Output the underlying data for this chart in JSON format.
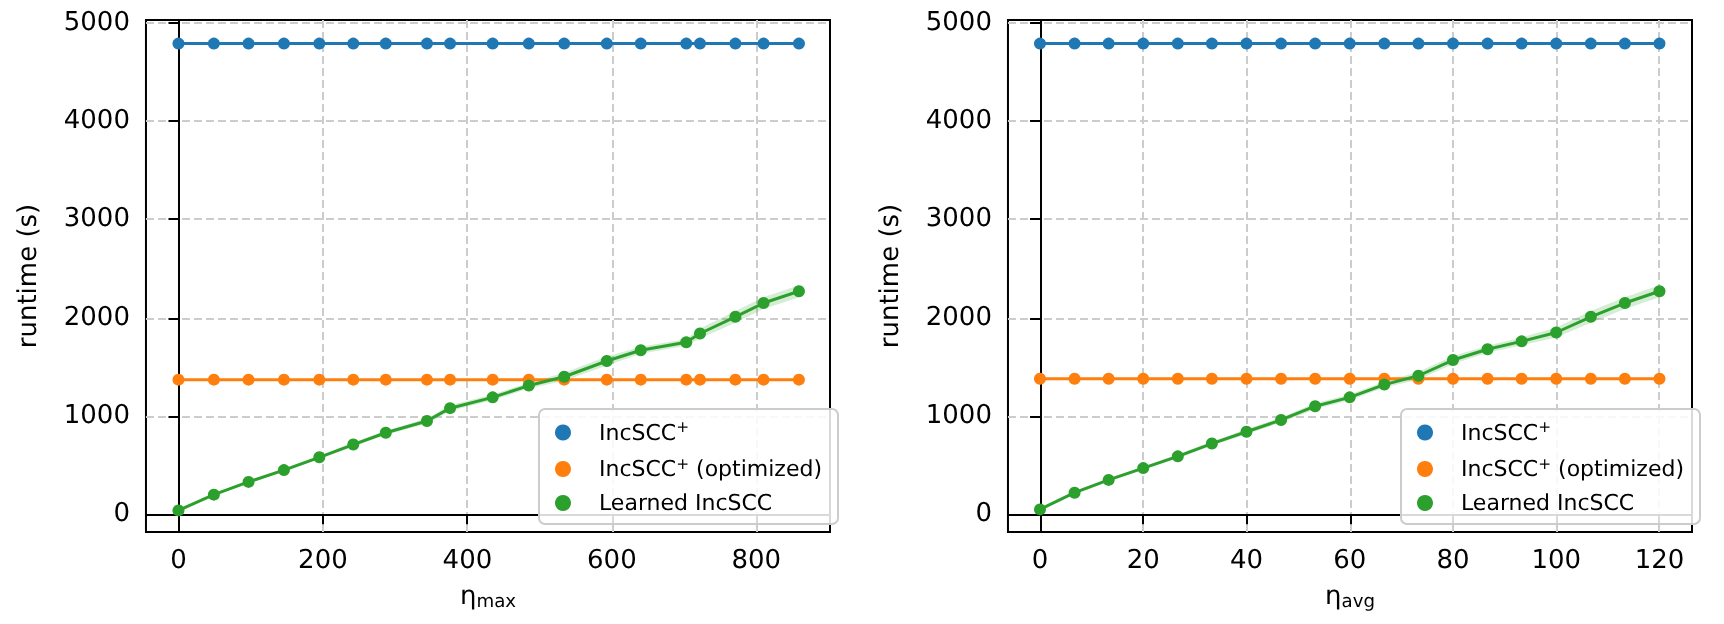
{
  "chart_data": [
    {
      "type": "line",
      "xlabel": "η$_{max}$",
      "ylabel": "runtime (s)",
      "xlim": [
        -45,
        902
      ],
      "xticks": [
        0,
        200,
        400,
        600,
        800
      ],
      "ylim": [
        -180,
        5030
      ],
      "yticks": [
        0,
        1000,
        2000,
        3000,
        4000,
        5000
      ],
      "grid": true,
      "legend": "bottom right",
      "marker": "circle",
      "line_style": "solid",
      "x": [
        0,
        49,
        97,
        146,
        195,
        242,
        287,
        344,
        376,
        435,
        485,
        534,
        593,
        640,
        703,
        722,
        771,
        810,
        859
      ],
      "series": [
        {
          "name": "IncSCC$^{+}$",
          "color": "#1f77b4",
          "values": [
            4790,
            4790,
            4790,
            4790,
            4790,
            4790,
            4790,
            4790,
            4790,
            4790,
            4790,
            4790,
            4790,
            4790,
            4790,
            4790,
            4790,
            4790,
            4790
          ]
        },
        {
          "name": "IncSCC$^{+}$ (optimized)",
          "color": "#ff7f0e",
          "values": [
            1370,
            1370,
            1370,
            1370,
            1370,
            1370,
            1370,
            1370,
            1370,
            1370,
            1370,
            1370,
            1370,
            1370,
            1370,
            1370,
            1370,
            1370,
            1370
          ]
        },
        {
          "name": "Learned IncSCC",
          "color": "#2ca02c",
          "values": [
            40,
            200,
            330,
            450,
            580,
            710,
            830,
            950,
            1080,
            1190,
            1310,
            1400,
            1560,
            1670,
            1750,
            1840,
            2010,
            2150,
            2270
          ],
          "lower": [
            30,
            190,
            315,
            435,
            565,
            690,
            810,
            925,
            1050,
            1160,
            1280,
            1360,
            1515,
            1635,
            1715,
            1790,
            1950,
            2090,
            2210
          ],
          "upper": [
            50,
            210,
            345,
            465,
            595,
            730,
            850,
            975,
            1110,
            1220,
            1340,
            1440,
            1605,
            1705,
            1785,
            1890,
            2070,
            2210,
            2330
          ]
        }
      ]
    },
    {
      "type": "line",
      "xlabel": "η$_{avg}$",
      "ylabel": "runtime (s)",
      "xlim": [
        -6.2,
        126.3
      ],
      "xticks": [
        0,
        20,
        40,
        60,
        80,
        100,
        120
      ],
      "ylim": [
        -180,
        5030
      ],
      "yticks": [
        0,
        1000,
        2000,
        3000,
        4000,
        5000
      ],
      "grid": true,
      "legend": "bottom right",
      "marker": "circle",
      "line_style": "solid",
      "x": [
        0,
        6.7,
        13.3,
        20,
        26.7,
        33.3,
        40,
        46.7,
        53.3,
        60,
        66.7,
        73.3,
        80,
        86.7,
        93.3,
        100,
        106.7,
        113.3,
        120
      ],
      "series": [
        {
          "name": "IncSCC$^{+}$",
          "color": "#1f77b4",
          "values": [
            4790,
            4790,
            4790,
            4790,
            4790,
            4790,
            4790,
            4790,
            4790,
            4790,
            4790,
            4790,
            4790,
            4790,
            4790,
            4790,
            4790,
            4790,
            4790
          ]
        },
        {
          "name": "IncSCC$^{+}$ (optimized)",
          "color": "#ff7f0e",
          "values": [
            1380,
            1380,
            1380,
            1380,
            1380,
            1380,
            1380,
            1380,
            1380,
            1380,
            1380,
            1380,
            1380,
            1380,
            1380,
            1380,
            1380,
            1380,
            1380
          ]
        },
        {
          "name": "Learned IncSCC",
          "color": "#2ca02c",
          "values": [
            50,
            220,
            350,
            470,
            590,
            720,
            840,
            960,
            1100,
            1190,
            1320,
            1410,
            1570,
            1680,
            1760,
            1850,
            2010,
            2150,
            2270
          ],
          "lower": [
            40,
            205,
            335,
            455,
            570,
            700,
            815,
            935,
            1070,
            1160,
            1290,
            1370,
            1530,
            1645,
            1720,
            1800,
            1950,
            2090,
            2210
          ],
          "upper": [
            60,
            235,
            365,
            485,
            610,
            740,
            865,
            985,
            1130,
            1220,
            1350,
            1450,
            1610,
            1715,
            1800,
            1900,
            2070,
            2210,
            2330
          ]
        }
      ]
    }
  ]
}
